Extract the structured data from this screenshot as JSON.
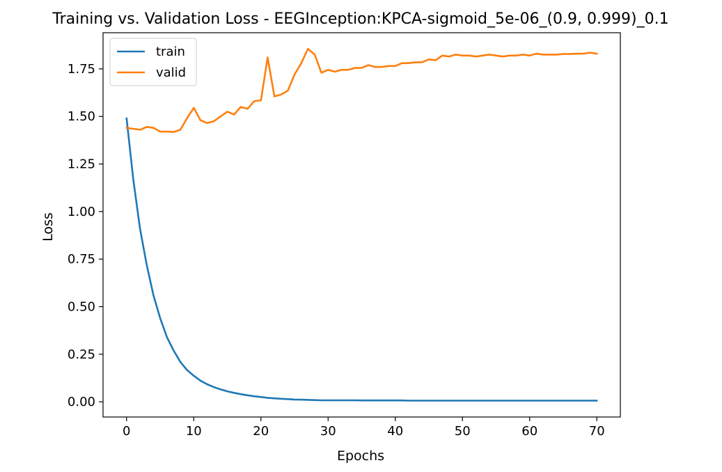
{
  "chart_data": {
    "type": "line",
    "title": "Training vs. Validation Loss - EEGInception:KPCA-sigmoid_5e-06_(0.9, 0.999)_0.1",
    "xlabel": "Epochs",
    "ylabel": "Loss",
    "xlim": [
      -3.5,
      73.5
    ],
    "ylim": [
      -0.08,
      1.94
    ],
    "xticks": [
      0,
      10,
      20,
      30,
      40,
      50,
      60,
      70
    ],
    "xtick_labels": [
      "0",
      "10",
      "20",
      "30",
      "40",
      "50",
      "60",
      "70"
    ],
    "yticks": [
      0.0,
      0.25,
      0.5,
      0.75,
      1.0,
      1.25,
      1.5,
      1.75
    ],
    "ytick_labels": [
      "0.00",
      "0.25",
      "0.50",
      "0.75",
      "1.00",
      "1.25",
      "1.50",
      "1.75"
    ],
    "grid": false,
    "legend_position": "upper-left",
    "x": [
      0,
      1,
      2,
      3,
      4,
      5,
      6,
      7,
      8,
      9,
      10,
      11,
      12,
      13,
      14,
      15,
      16,
      17,
      18,
      19,
      20,
      21,
      22,
      23,
      24,
      25,
      26,
      27,
      28,
      29,
      30,
      31,
      32,
      33,
      34,
      35,
      36,
      37,
      38,
      39,
      40,
      41,
      42,
      43,
      44,
      45,
      46,
      47,
      48,
      49,
      50,
      51,
      52,
      53,
      54,
      55,
      56,
      57,
      58,
      59,
      60,
      61,
      62,
      63,
      64,
      65,
      66,
      67,
      68,
      69,
      70
    ],
    "series": [
      {
        "name": "train",
        "color": "#1f77b4",
        "values": [
          1.49,
          1.17,
          0.91,
          0.72,
          0.56,
          0.44,
          0.34,
          0.27,
          0.21,
          0.167,
          0.137,
          0.111,
          0.092,
          0.077,
          0.065,
          0.055,
          0.047,
          0.04,
          0.034,
          0.029,
          0.025,
          0.021,
          0.018,
          0.016,
          0.014,
          0.012,
          0.011,
          0.01,
          0.009,
          0.008,
          0.008,
          0.008,
          0.008,
          0.008,
          0.008,
          0.007,
          0.007,
          0.007,
          0.007,
          0.007,
          0.007,
          0.007,
          0.006,
          0.006,
          0.006,
          0.006,
          0.006,
          0.006,
          0.006,
          0.006,
          0.006,
          0.006,
          0.006,
          0.006,
          0.006,
          0.006,
          0.006,
          0.006,
          0.006,
          0.006,
          0.006,
          0.006,
          0.006,
          0.006,
          0.006,
          0.006,
          0.006,
          0.006,
          0.006,
          0.006,
          0.006
        ]
      },
      {
        "name": "valid",
        "color": "#ff7f0e",
        "values": [
          1.44,
          1.435,
          1.43,
          1.445,
          1.44,
          1.42,
          1.42,
          1.418,
          1.43,
          1.49,
          1.545,
          1.48,
          1.465,
          1.475,
          1.5,
          1.525,
          1.51,
          1.55,
          1.54,
          1.58,
          1.585,
          1.81,
          1.605,
          1.615,
          1.635,
          1.72,
          1.78,
          1.855,
          1.825,
          1.73,
          1.745,
          1.735,
          1.745,
          1.745,
          1.755,
          1.755,
          1.77,
          1.76,
          1.76,
          1.765,
          1.765,
          1.78,
          1.78,
          1.785,
          1.785,
          1.8,
          1.795,
          1.82,
          1.815,
          1.825,
          1.82,
          1.82,
          1.815,
          1.82,
          1.825,
          1.82,
          1.815,
          1.82,
          1.82,
          1.825,
          1.82,
          1.83,
          1.825,
          1.825,
          1.825,
          1.828,
          1.828,
          1.83,
          1.83,
          1.835,
          1.83
        ]
      }
    ]
  }
}
